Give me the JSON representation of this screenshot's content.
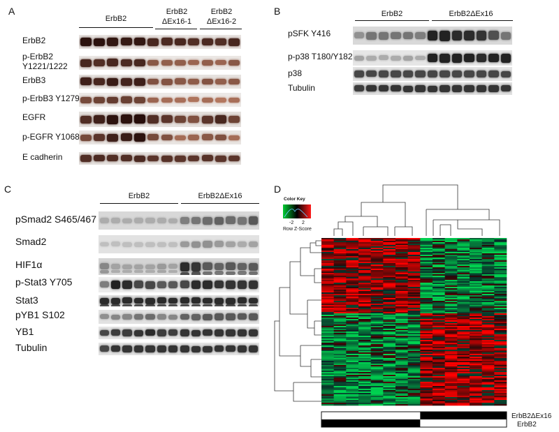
{
  "panelA": {
    "letter": "A",
    "groups": [
      {
        "label": "ErbB2"
      },
      {
        "label": "ErbB2\nΔEx16-1"
      },
      {
        "label": "ErbB2\nΔEx16-2"
      }
    ],
    "rows": [
      {
        "label": "ErbB2",
        "intensity": [
          0.95,
          0.95,
          0.92,
          0.9,
          0.92,
          0.8,
          0.78,
          0.8,
          0.75,
          0.78,
          0.75,
          0.8
        ]
      },
      {
        "label": "p-ErbB2\nY1221/1222",
        "intensity": [
          0.8,
          0.75,
          0.8,
          0.78,
          0.8,
          0.45,
          0.4,
          0.4,
          0.35,
          0.4,
          0.35,
          0.45
        ]
      },
      {
        "label": "ErbB3",
        "intensity": [
          0.85,
          0.8,
          0.88,
          0.82,
          0.86,
          0.5,
          0.48,
          0.45,
          0.42,
          0.48,
          0.4,
          0.45
        ]
      },
      {
        "label": "p-ErbB3 Y1279",
        "intensity": [
          0.55,
          0.6,
          0.65,
          0.62,
          0.6,
          0.35,
          0.3,
          0.28,
          0.25,
          0.3,
          0.22,
          0.28
        ]
      },
      {
        "label": "EGFR",
        "intensity": [
          0.75,
          0.85,
          0.95,
          0.95,
          0.98,
          0.75,
          0.7,
          0.6,
          0.5,
          0.7,
          0.8,
          0.6
        ]
      },
      {
        "label": "p-EGFR Y1068",
        "intensity": [
          0.55,
          0.7,
          0.85,
          0.88,
          0.95,
          0.55,
          0.5,
          0.3,
          0.35,
          0.45,
          0.5,
          0.3
        ]
      },
      {
        "label": "E cadherin",
        "intensity": [
          0.75,
          0.78,
          0.75,
          0.75,
          0.78,
          0.7,
          0.72,
          0.7,
          0.7,
          0.72,
          0.7,
          0.7
        ]
      }
    ]
  },
  "panelB": {
    "letter": "B",
    "groups": [
      {
        "label": "ErbB2"
      },
      {
        "label": "ErbB2ΔEx16"
      }
    ],
    "rows": [
      {
        "label": "pSFK Y416",
        "intensity": [
          0.3,
          0.45,
          0.45,
          0.45,
          0.45,
          0.4,
          0.9,
          0.9,
          0.85,
          0.85,
          0.8,
          0.65,
          0.45
        ]
      },
      {
        "label": "p-p38 T180/Y182",
        "intensity": [
          0.2,
          0.15,
          0.15,
          0.15,
          0.2,
          0.15,
          0.9,
          0.9,
          0.9,
          0.9,
          0.85,
          0.9,
          0.9
        ]
      },
      {
        "label": "p38",
        "intensity": [
          0.7,
          0.7,
          0.7,
          0.7,
          0.7,
          0.7,
          0.7,
          0.7,
          0.7,
          0.7,
          0.7,
          0.7,
          0.7
        ]
      },
      {
        "label": "Tubulin",
        "intensity": [
          0.75,
          0.8,
          0.8,
          0.8,
          0.8,
          0.8,
          0.8,
          0.8,
          0.8,
          0.8,
          0.8,
          0.8,
          0.8
        ]
      }
    ]
  },
  "panelC": {
    "letter": "C",
    "groups": [
      {
        "label": "ErbB2"
      },
      {
        "label": "ErbB2ΔEx16"
      }
    ],
    "rows": [
      {
        "label": "pSmad2 S465/467",
        "intensity": [
          0.15,
          0.15,
          0.15,
          0.15,
          0.15,
          0.15,
          0.15,
          0.4,
          0.45,
          0.5,
          0.55,
          0.5,
          0.45,
          0.6
        ]
      },
      {
        "label": "Smad2",
        "intensity": [
          0.05,
          0.05,
          0.05,
          0.05,
          0.05,
          0.05,
          0.05,
          0.25,
          0.3,
          0.3,
          0.25,
          0.2,
          0.15,
          0.2
        ]
      },
      {
        "label": "HIF1α",
        "intensity": [
          0.35,
          0.2,
          0.2,
          0.2,
          0.2,
          0.25,
          0.2,
          0.85,
          0.8,
          0.6,
          0.55,
          0.6,
          0.55,
          0.6
        ]
      },
      {
        "label": "p-Stat3 Y705",
        "intensity": [
          0.4,
          0.9,
          0.85,
          0.7,
          0.7,
          0.6,
          0.6,
          0.7,
          0.85,
          0.85,
          0.8,
          0.8,
          0.8,
          0.8
        ]
      },
      {
        "label": "Stat3",
        "intensity": [
          0.85,
          0.85,
          0.85,
          0.85,
          0.85,
          0.85,
          0.85,
          0.85,
          0.85,
          0.85,
          0.85,
          0.85,
          0.85,
          0.85
        ]
      },
      {
        "label": "pYB1 S102",
        "intensity": [
          0.3,
          0.35,
          0.35,
          0.45,
          0.5,
          0.35,
          0.35,
          0.55,
          0.55,
          0.6,
          0.6,
          0.6,
          0.6,
          0.6
        ]
      },
      {
        "label": "YB1",
        "intensity": [
          0.7,
          0.75,
          0.75,
          0.8,
          0.85,
          0.75,
          0.75,
          0.8,
          0.8,
          0.8,
          0.8,
          0.8,
          0.8,
          0.8
        ]
      },
      {
        "label": "Tubulin",
        "intensity": [
          0.7,
          0.8,
          0.8,
          0.8,
          0.8,
          0.8,
          0.8,
          0.8,
          0.8,
          0.8,
          0.8,
          0.8,
          0.8,
          0.8
        ]
      }
    ]
  },
  "panelD": {
    "letter": "D",
    "colorkey": {
      "title": "Color Key",
      "ticks": [
        "-2",
        "2"
      ],
      "label": "Row Z-Score",
      "low_color": "#00cc33",
      "high_color": "#ff1a1a"
    },
    "legend": [
      {
        "label": "ErbB2ΔEx16"
      },
      {
        "label": "ErbB2"
      }
    ],
    "samples": 15,
    "erbb2_samples": 8,
    "genes": 120
  },
  "colors": {
    "band": "#2a2a2a",
    "band_brown": "#3a2418",
    "blot_bg": "#dcdcdc"
  }
}
